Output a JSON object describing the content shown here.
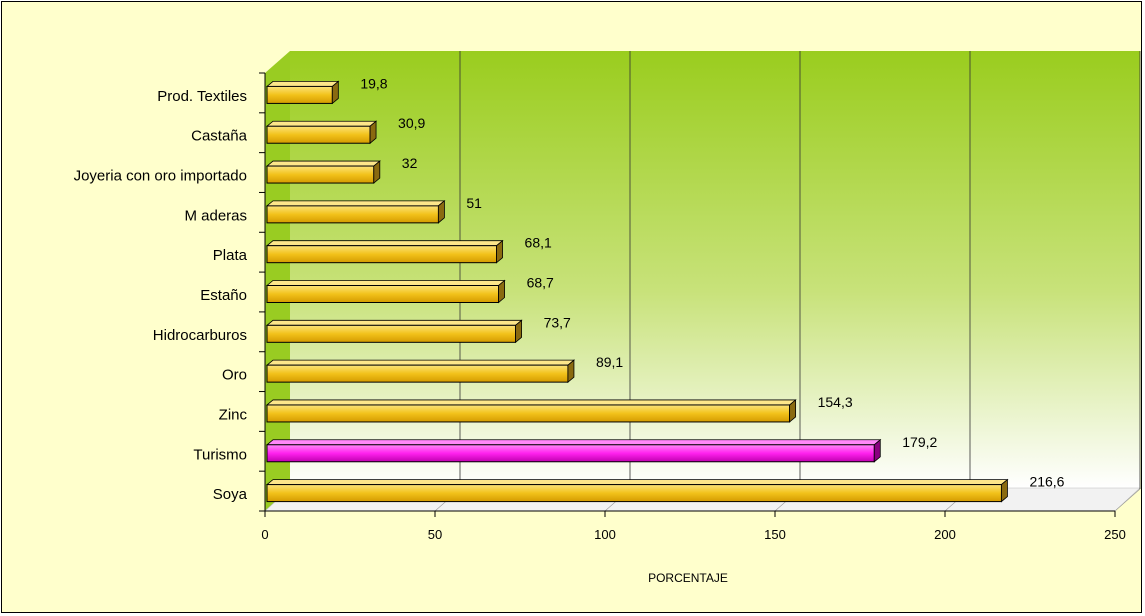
{
  "chart_data": {
    "type": "bar",
    "orientation": "horizontal",
    "title": "",
    "xlabel": "PORCENTAJE",
    "ylabel": "",
    "xlim": [
      0,
      250
    ],
    "xticks": [
      0,
      50,
      100,
      150,
      200,
      250
    ],
    "grid": true,
    "categories": [
      "Prod. Textiles",
      "Castaña",
      "Joyeria con oro importado",
      "M aderas",
      "Plata",
      "Estaño",
      "Hidrocarburos",
      "Oro",
      "Zinc",
      "Turismo",
      "Soya"
    ],
    "values": [
      19.8,
      30.9,
      32,
      51,
      68.1,
      68.7,
      73.7,
      89.1,
      154.3,
      179.2,
      216.6
    ],
    "value_labels": [
      "19,8",
      "30,9",
      "32",
      "51",
      "68,1",
      "68,7",
      "73,7",
      "89,1",
      "154,3",
      "179,2",
      "216,6"
    ],
    "highlight_category": "Turismo",
    "colors": {
      "bar": "#f2c21a",
      "bar_highlight": "#ff22ee",
      "background": "#ffffcc",
      "wall_top": "#9acd1e",
      "wall_bottom": "#ffffff",
      "side_wall": "#99cc22"
    }
  }
}
